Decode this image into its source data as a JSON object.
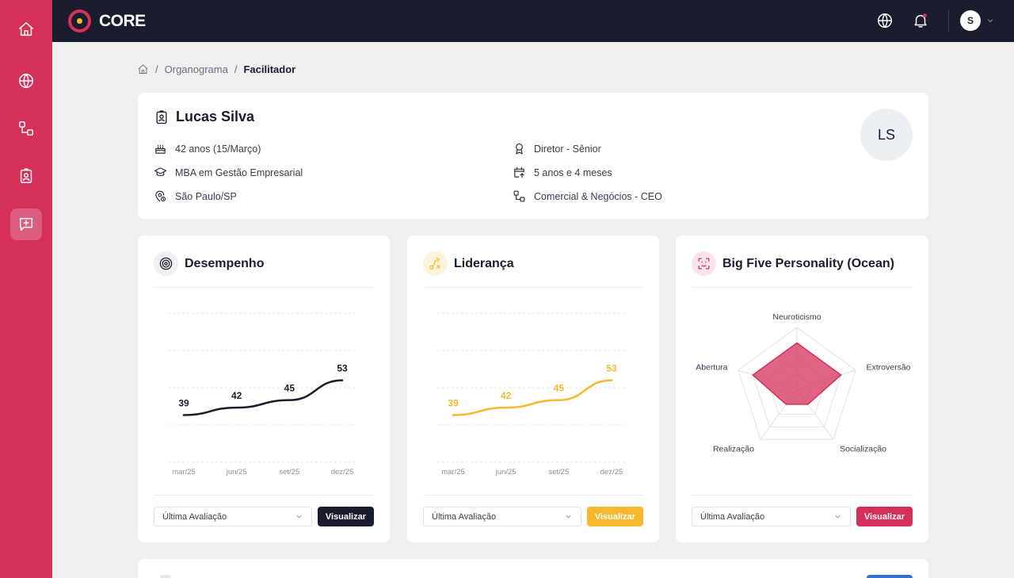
{
  "app": {
    "name": "CORE"
  },
  "user": {
    "initial": "S"
  },
  "breadcrumb": {
    "items": [
      "Organograma",
      "Facilitador"
    ],
    "separator": "/"
  },
  "profile": {
    "name": "Lucas Silva",
    "initials": "LS",
    "age": "42 anos (15/Março)",
    "education": "MBA em Gestão Empresarial",
    "location": "São Paulo/SP",
    "role": "Diretor - Sênior",
    "tenure": "5 anos e 4 meses",
    "department": "Comercial & Negócios - CEO"
  },
  "panels": {
    "performance": {
      "title": "Desempenho",
      "select_value": "Última Avaliação",
      "button_label": "Visualizar",
      "color": "#1a1d2e"
    },
    "leadership": {
      "title": "Liderança",
      "select_value": "Última Avaliação",
      "button_label": "Visualizar",
      "color": "#f5b82e"
    },
    "bigfive": {
      "title": "Big Five Personality (Ocean)",
      "select_value": "Última Avaliação",
      "button_label": "Visualizar",
      "color": "#d4305a"
    }
  },
  "chart_data": [
    {
      "type": "line",
      "categories": [
        "mar/25",
        "jun/25",
        "set/25",
        "dez/25"
      ],
      "values": [
        39,
        42,
        45,
        53
      ],
      "ylim": [
        20,
        80
      ],
      "color": "#1a1d2e",
      "grid": true
    },
    {
      "type": "line",
      "categories": [
        "mar/25",
        "jun/25",
        "set/25",
        "dez/25"
      ],
      "values": [
        39,
        42,
        45,
        53
      ],
      "ylim": [
        20,
        80
      ],
      "color": "#f5b82e",
      "grid": true
    },
    {
      "type": "radar",
      "axes": [
        "Neuroticismo",
        "Extroversão",
        "Socialização",
        "Realização",
        "Abertura"
      ],
      "values": [
        0.75,
        0.75,
        0.3,
        0.3,
        0.75
      ],
      "max": 1,
      "color": "#d4305a"
    }
  ]
}
